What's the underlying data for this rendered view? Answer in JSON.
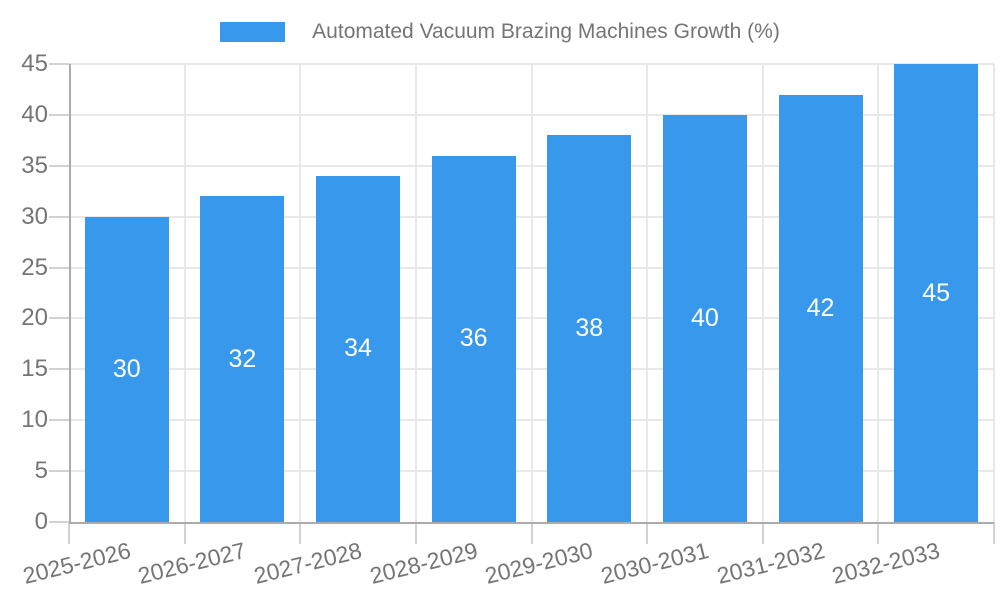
{
  "chart_data": {
    "type": "bar",
    "title": "",
    "series_name": "Automated Vacuum Brazing Machines Growth (%)",
    "categories": [
      "2025-2026",
      "2026-2027",
      "2027-2028",
      "2028-2029",
      "2029-2030",
      "2030-2031",
      "2031-2032",
      "2032-2033"
    ],
    "values": [
      30,
      32,
      34,
      36,
      38,
      40,
      42,
      45
    ],
    "bar_labels": [
      "30",
      "32",
      "34",
      "36",
      "38",
      "40",
      "42",
      "45"
    ],
    "xlabel": "",
    "ylabel": "",
    "ylim": [
      0,
      45
    ],
    "ytick_step": 5,
    "yticks": [
      0,
      5,
      10,
      15,
      20,
      25,
      30,
      35,
      40,
      45
    ],
    "grid": true,
    "legend_position": "top",
    "colors": {
      "bar": "#3899ec",
      "bar_label": "#ffffff",
      "axis_text": "#757575",
      "gridline": "#e8e8e8",
      "tick": "#d2d2d2",
      "axis_line": "#ababab",
      "background": "#ffffff"
    }
  }
}
